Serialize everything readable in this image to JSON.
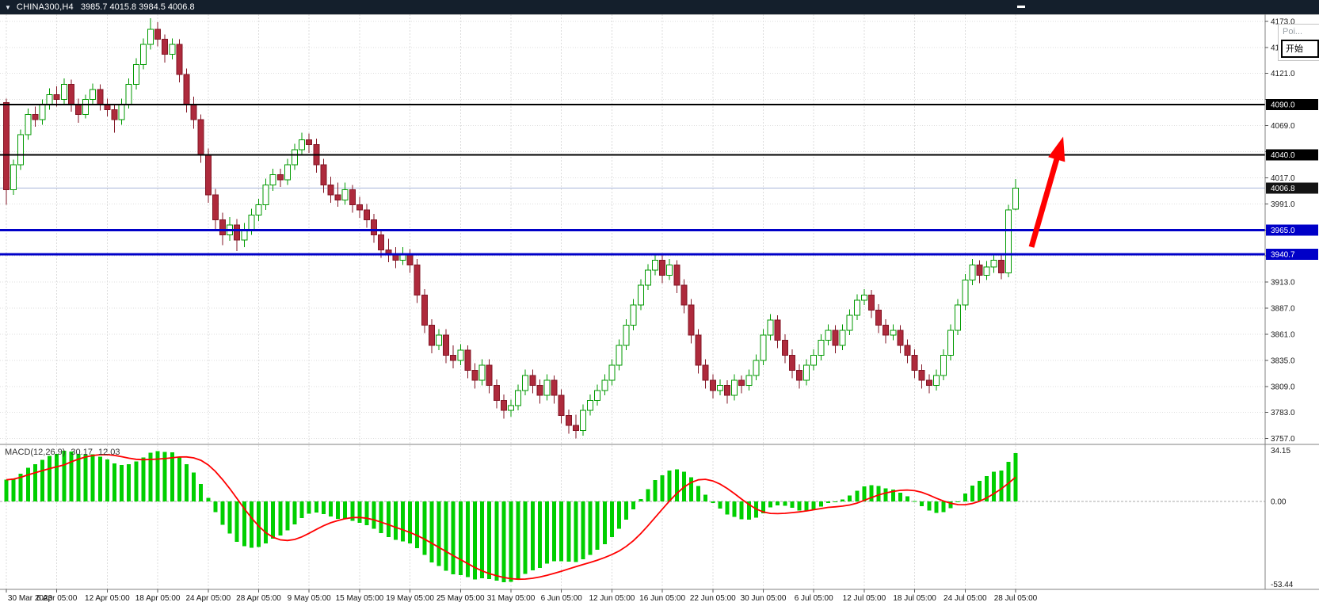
{
  "header": {
    "symbol_period": "CHINA300,H4",
    "ohlc": "3985.7 4015.8 3984.5 4006.8"
  },
  "indicator_label": {
    "name": "MACD(12,26,9)",
    "main_value": "30.17",
    "signal_value": "12.03"
  },
  "popup": {
    "truncated_text": "Poi...",
    "start_button": "开始"
  },
  "colors": {
    "titlebar_bg": "#141f2c",
    "candle_up": "#009A00",
    "candle_up_fill": "#ffffff",
    "candle_down": "#AE2A3C",
    "candle_down_border": "#821625",
    "macd_bar": "#00CF00",
    "macd_signal": "#FF0000",
    "arrow": "#FF0000",
    "level_black": "#000000",
    "level_blue": "#0000C8",
    "current_price_line": "#aab6da"
  },
  "chart_data": {
    "type": "candlestick",
    "title": "CHINA300,H4",
    "symbol": "CHINA300",
    "timeframe": "H4",
    "last_bar": {
      "open": 3985.7,
      "high": 4015.8,
      "low": 3984.5,
      "close": 4006.8
    },
    "current_price": 4006.8,
    "ylim": [
      3752,
      4180
    ],
    "price_axis": {
      "tick_start": 4173.0,
      "tick_interval": 26.0,
      "tick_count": 17,
      "hidden_tick_labels": [
        4095,
        4043,
        3965,
        3939
      ],
      "badges": [
        {
          "label": "4090.0",
          "price": 4090.0,
          "color": "#000000"
        },
        {
          "label": "4040.0",
          "price": 4040.0,
          "color": "#000000"
        },
        {
          "label": "4006.8",
          "price": 4006.8,
          "color": "#141414"
        },
        {
          "label": "3965.0",
          "price": 3965.0,
          "color": "#0000C8"
        },
        {
          "label": "3940.7",
          "price": 3940.7,
          "color": "#0000C8"
        }
      ]
    },
    "horizontal_lines": [
      {
        "price": 4090.0,
        "color": "#000000",
        "width": 2
      },
      {
        "price": 4040.0,
        "color": "#000000",
        "width": 2
      },
      {
        "price": 3965.0,
        "color": "#0000C8",
        "width": 3
      },
      {
        "price": 3940.7,
        "color": "#0000C8",
        "width": 3
      }
    ],
    "time_labels": [
      "30 Mar 2023",
      "6 Apr 05:00",
      "12 Apr 05:00",
      "18 Apr 05:00",
      "24 Apr 05:00",
      "28 Apr 05:00",
      "9 May 05:00",
      "15 May 05:00",
      "19 May 05:00",
      "25 May 05:00",
      "31 May 05:00",
      "6 Jun 05:00",
      "12 Jun 05:00",
      "16 Jun 05:00",
      "22 Jun 05:00",
      "30 Jun 05:00",
      "6 Jul 05:00",
      "12 Jul 05:00",
      "18 Jul 05:00",
      "24 Jul 05:00",
      "28 Jul 05:00"
    ],
    "candles": [
      [
        4092,
        4096,
        3990,
        4005
      ],
      [
        4005,
        4035,
        4000,
        4030
      ],
      [
        4030,
        4065,
        4025,
        4060
      ],
      [
        4060,
        4086,
        4055,
        4080
      ],
      [
        4080,
        4088,
        4068,
        4075
      ],
      [
        4075,
        4095,
        4070,
        4090
      ],
      [
        4090,
        4106,
        4085,
        4100
      ],
      [
        4100,
        4108,
        4088,
        4095
      ],
      [
        4095,
        4116,
        4090,
        4110
      ],
      [
        4110,
        4115,
        4083,
        4090
      ],
      [
        4090,
        4096,
        4072,
        4080
      ],
      [
        4080,
        4100,
        4076,
        4095
      ],
      [
        4095,
        4111,
        4090,
        4105
      ],
      [
        4105,
        4110,
        4084,
        4090
      ],
      [
        4090,
        4096,
        4078,
        4085
      ],
      [
        4085,
        4090,
        4062,
        4075
      ],
      [
        4075,
        4096,
        4070,
        4090
      ],
      [
        4090,
        4116,
        4086,
        4110
      ],
      [
        4110,
        4136,
        4105,
        4130
      ],
      [
        4130,
        4156,
        4125,
        4150
      ],
      [
        4150,
        4176,
        4145,
        4165
      ],
      [
        4165,
        4172,
        4148,
        4155
      ],
      [
        4155,
        4160,
        4132,
        4140
      ],
      [
        4140,
        4156,
        4135,
        4150
      ],
      [
        4150,
        4155,
        4112,
        4120
      ],
      [
        4120,
        4126,
        4082,
        4090
      ],
      [
        4090,
        4098,
        4066,
        4075
      ],
      [
        4075,
        4080,
        4032,
        4040
      ],
      [
        4040,
        4046,
        3992,
        4000
      ],
      [
        4000,
        4006,
        3966,
        3975
      ],
      [
        3975,
        3982,
        3950,
        3960
      ],
      [
        3960,
        3978,
        3954,
        3970
      ],
      [
        3970,
        3976,
        3944,
        3955
      ],
      [
        3955,
        3972,
        3948,
        3965
      ],
      [
        3965,
        3986,
        3960,
        3980
      ],
      [
        3980,
        3996,
        3974,
        3990
      ],
      [
        3990,
        4016,
        3985,
        4010
      ],
      [
        4010,
        4026,
        4004,
        4020
      ],
      [
        4020,
        4026,
        4008,
        4015
      ],
      [
        4015,
        4036,
        4010,
        4030
      ],
      [
        4030,
        4051,
        4025,
        4045
      ],
      [
        4045,
        4062,
        4040,
        4055
      ],
      [
        4055,
        4061,
        4042,
        4050
      ],
      [
        4050,
        4056,
        4022,
        4030
      ],
      [
        4030,
        4036,
        4002,
        4010
      ],
      [
        4010,
        4018,
        3992,
        4000
      ],
      [
        4000,
        4012,
        3988,
        3995
      ],
      [
        3995,
        4012,
        3990,
        4005
      ],
      [
        4005,
        4010,
        3982,
        3990
      ],
      [
        3990,
        3998,
        3977,
        3985
      ],
      [
        3985,
        3991,
        3967,
        3975
      ],
      [
        3975,
        3981,
        3952,
        3960
      ],
      [
        3960,
        3966,
        3937,
        3945
      ],
      [
        3945,
        3956,
        3933,
        3940
      ],
      [
        3940,
        3948,
        3927,
        3935
      ],
      [
        3935,
        3948,
        3930,
        3940
      ],
      [
        3940,
        3946,
        3922,
        3930
      ],
      [
        3930,
        3936,
        3892,
        3900
      ],
      [
        3900,
        3906,
        3862,
        3870
      ],
      [
        3870,
        3876,
        3842,
        3850
      ],
      [
        3850,
        3866,
        3845,
        3860
      ],
      [
        3860,
        3866,
        3832,
        3840
      ],
      [
        3840,
        3850,
        3827,
        3835
      ],
      [
        3835,
        3851,
        3830,
        3845
      ],
      [
        3845,
        3850,
        3817,
        3825
      ],
      [
        3825,
        3832,
        3807,
        3815
      ],
      [
        3815,
        3836,
        3810,
        3830
      ],
      [
        3830,
        3836,
        3802,
        3810
      ],
      [
        3810,
        3816,
        3787,
        3795
      ],
      [
        3795,
        3801,
        3777,
        3785
      ],
      [
        3785,
        3796,
        3779,
        3790
      ],
      [
        3790,
        3811,
        3785,
        3805
      ],
      [
        3805,
        3826,
        3800,
        3820
      ],
      [
        3820,
        3826,
        3802,
        3810
      ],
      [
        3810,
        3816,
        3792,
        3800
      ],
      [
        3800,
        3821,
        3795,
        3815
      ],
      [
        3815,
        3820,
        3792,
        3800
      ],
      [
        3800,
        3806,
        3772,
        3780
      ],
      [
        3780,
        3786,
        3762,
        3770
      ],
      [
        3770,
        3781,
        3757,
        3765
      ],
      [
        3765,
        3791,
        3760,
        3785
      ],
      [
        3785,
        3801,
        3780,
        3795
      ],
      [
        3795,
        3811,
        3790,
        3805
      ],
      [
        3805,
        3821,
        3800,
        3815
      ],
      [
        3815,
        3836,
        3810,
        3830
      ],
      [
        3830,
        3856,
        3825,
        3850
      ],
      [
        3850,
        3876,
        3845,
        3870
      ],
      [
        3870,
        3896,
        3865,
        3890
      ],
      [
        3890,
        3916,
        3885,
        3910
      ],
      [
        3910,
        3931,
        3905,
        3925
      ],
      [
        3925,
        3941,
        3920,
        3935
      ],
      [
        3935,
        3940,
        3912,
        3920
      ],
      [
        3920,
        3936,
        3915,
        3930
      ],
      [
        3930,
        3935,
        3902,
        3910
      ],
      [
        3910,
        3916,
        3882,
        3890
      ],
      [
        3890,
        3896,
        3852,
        3860
      ],
      [
        3860,
        3866,
        3822,
        3830
      ],
      [
        3830,
        3836,
        3807,
        3815
      ],
      [
        3815,
        3821,
        3797,
        3805
      ],
      [
        3805,
        3816,
        3800,
        3810
      ],
      [
        3810,
        3815,
        3792,
        3800
      ],
      [
        3800,
        3821,
        3795,
        3815
      ],
      [
        3815,
        3820,
        3802,
        3810
      ],
      [
        3810,
        3826,
        3805,
        3820
      ],
      [
        3820,
        3841,
        3815,
        3835
      ],
      [
        3835,
        3866,
        3830,
        3860
      ],
      [
        3860,
        3881,
        3855,
        3875
      ],
      [
        3875,
        3880,
        3847,
        3855
      ],
      [
        3855,
        3861,
        3832,
        3840
      ],
      [
        3840,
        3846,
        3817,
        3825
      ],
      [
        3825,
        3831,
        3807,
        3815
      ],
      [
        3815,
        3836,
        3810,
        3830
      ],
      [
        3830,
        3846,
        3825,
        3840
      ],
      [
        3840,
        3861,
        3835,
        3855
      ],
      [
        3855,
        3871,
        3850,
        3865
      ],
      [
        3865,
        3870,
        3842,
        3850
      ],
      [
        3850,
        3871,
        3845,
        3865
      ],
      [
        3865,
        3886,
        3860,
        3880
      ],
      [
        3880,
        3901,
        3875,
        3895
      ],
      [
        3895,
        3906,
        3890,
        3900
      ],
      [
        3900,
        3905,
        3877,
        3885
      ],
      [
        3885,
        3891,
        3862,
        3870
      ],
      [
        3870,
        3876,
        3852,
        3860
      ],
      [
        3860,
        3871,
        3855,
        3865
      ],
      [
        3865,
        3870,
        3842,
        3850
      ],
      [
        3850,
        3856,
        3832,
        3840
      ],
      [
        3840,
        3846,
        3817,
        3825
      ],
      [
        3825,
        3831,
        3807,
        3815
      ],
      [
        3815,
        3821,
        3802,
        3810
      ],
      [
        3810,
        3826,
        3805,
        3820
      ],
      [
        3820,
        3846,
        3815,
        3840
      ],
      [
        3840,
        3871,
        3835,
        3865
      ],
      [
        3865,
        3896,
        3860,
        3890
      ],
      [
        3890,
        3921,
        3885,
        3915
      ],
      [
        3915,
        3936,
        3910,
        3930
      ],
      [
        3930,
        3935,
        3912,
        3920
      ],
      [
        3920,
        3934,
        3915,
        3928
      ],
      [
        3928,
        3941,
        3922,
        3935
      ],
      [
        3935,
        3940,
        3916,
        3922
      ],
      [
        3922,
        3990,
        3918,
        3985
      ],
      [
        3985.7,
        4015.8,
        3984.5,
        4006.8
      ]
    ],
    "macd": {
      "params": "12,26,9",
      "main_value": 30.17,
      "signal_value": 12.03,
      "ylim": [
        -56,
        36
      ],
      "axis_labels": [
        "34.15",
        "0.00",
        "-53.44"
      ]
    },
    "arrow": {
      "from_bar": 142.2,
      "from_price": 3948,
      "to_bar": 146.6,
      "to_price": 4058
    }
  }
}
